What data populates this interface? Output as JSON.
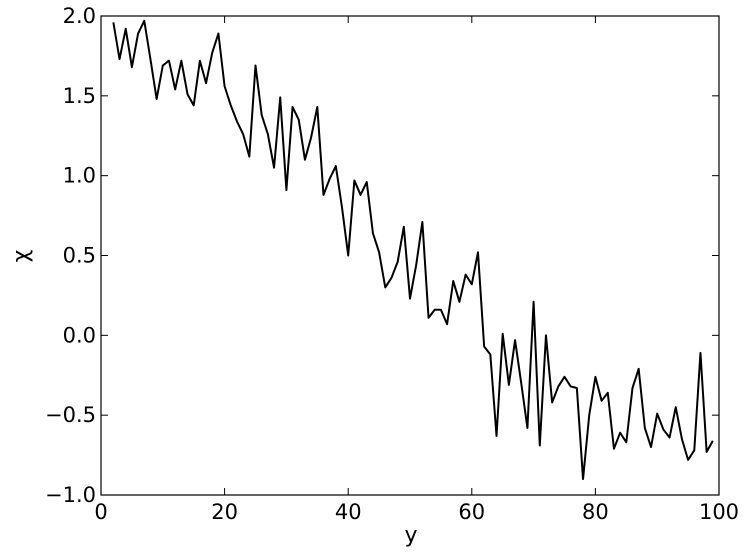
{
  "chart_data": {
    "type": "line",
    "xlabel": "y",
    "ylabel": "χ",
    "xlim": [
      0,
      100
    ],
    "ylim": [
      -1.0,
      2.0
    ],
    "grid": false,
    "x_ticks": [
      0,
      20,
      40,
      60,
      80,
      100
    ],
    "x_tick_labels": [
      "0",
      "20",
      "40",
      "60",
      "80",
      "100"
    ],
    "y_ticks": [
      -1.0,
      -0.5,
      0.0,
      0.5,
      1.0,
      1.5,
      2.0
    ],
    "y_tick_labels": [
      "−1.0",
      "−0.5",
      "0.0",
      "0.5",
      "1.0",
      "1.5",
      "2.0"
    ],
    "line_color": "#000000",
    "series": [
      {
        "x": [
          2,
          3,
          4,
          5,
          6,
          7,
          8,
          9,
          10,
          11,
          12,
          13,
          14,
          15,
          16,
          17,
          18,
          19,
          20,
          21,
          22,
          23,
          24,
          25,
          26,
          27,
          28,
          29,
          30,
          31,
          32,
          33,
          34,
          35,
          36,
          37,
          38,
          39,
          40,
          41,
          42,
          43,
          44,
          45,
          46,
          47,
          48,
          49,
          50,
          51,
          52,
          53,
          54,
          55,
          56,
          57,
          58,
          59,
          60,
          61,
          62,
          63,
          64,
          65,
          66,
          67,
          68,
          69,
          70,
          71,
          72,
          73,
          74,
          75,
          76,
          77,
          78,
          79,
          80,
          81,
          82,
          83,
          84,
          85,
          86,
          87,
          88,
          89,
          90,
          91,
          92,
          93,
          94,
          95,
          96,
          97,
          98,
          99
        ],
        "values": [
          1.96,
          1.73,
          1.92,
          1.68,
          1.89,
          1.97,
          1.73,
          1.48,
          1.69,
          1.72,
          1.54,
          1.72,
          1.51,
          1.44,
          1.72,
          1.58,
          1.77,
          1.89,
          1.56,
          1.44,
          1.34,
          1.26,
          1.12,
          1.69,
          1.38,
          1.26,
          1.05,
          1.49,
          0.91,
          1.43,
          1.35,
          1.1,
          1.24,
          1.43,
          0.88,
          0.98,
          1.06,
          0.8,
          0.5,
          0.97,
          0.88,
          0.96,
          0.64,
          0.52,
          0.3,
          0.36,
          0.46,
          0.68,
          0.23,
          0.44,
          0.71,
          0.11,
          0.16,
          0.16,
          0.07,
          0.34,
          0.21,
          0.38,
          0.32,
          0.52,
          -0.07,
          -0.12,
          -0.63,
          0.01,
          -0.31,
          -0.03,
          -0.3,
          -0.58,
          0.21,
          -0.69,
          0.0,
          -0.42,
          -0.32,
          -0.26,
          -0.32,
          -0.33,
          -0.9,
          -0.5,
          -0.26,
          -0.41,
          -0.36,
          -0.71,
          -0.61,
          -0.67,
          -0.33,
          -0.21,
          -0.58,
          -0.7,
          -0.49,
          -0.59,
          -0.64,
          -0.45,
          -0.65,
          -0.78,
          -0.72,
          -0.11,
          -0.73,
          -0.66
        ]
      }
    ]
  }
}
